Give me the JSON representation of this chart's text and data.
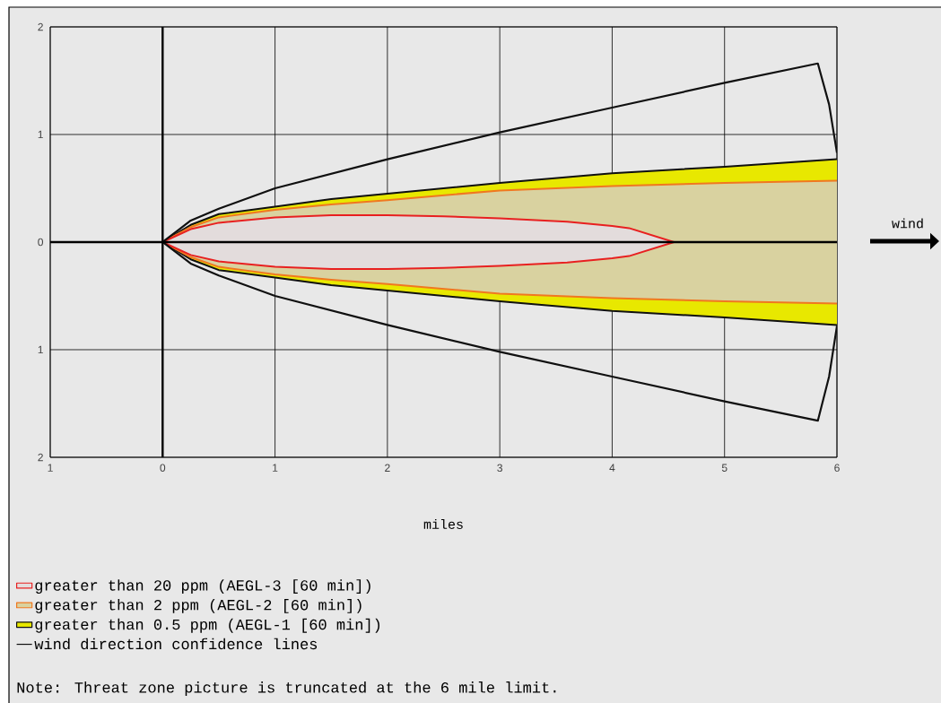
{
  "chart_data": {
    "type": "area",
    "xlabel": "miles",
    "xlim": [
      -1,
      6
    ],
    "ylim": [
      -2,
      2
    ],
    "xticks": [
      {
        "value": -1,
        "label": "1"
      },
      0,
      1,
      2,
      3,
      4,
      5,
      6
    ],
    "yticks": [
      {
        "value": -2,
        "label": "2"
      },
      {
        "value": -1,
        "label": "1"
      },
      0,
      1,
      2
    ],
    "grid": true,
    "legend": "bottom",
    "series": [
      {
        "name": "greater than 20 ppm (AEGL-3 [60 min])",
        "color": "#e3dcdc",
        "x": [
          0,
          0.25,
          0.5,
          1,
          1.5,
          2,
          2.5,
          3,
          3.6,
          4,
          4.15,
          4.55
        ],
        "values": [
          0,
          0.12,
          0.18,
          0.23,
          0.25,
          0.25,
          0.24,
          0.22,
          0.19,
          0.15,
          0.13,
          0
        ]
      },
      {
        "color": "#e3dcdc",
        "x": [
          0,
          0.25,
          0.5,
          1,
          1.5,
          2,
          2.5,
          3,
          3.6,
          4,
          4.15,
          4.55
        ],
        "values": [
          0,
          -0.12,
          -0.18,
          -0.23,
          -0.25,
          -0.25,
          -0.24,
          -0.22,
          -0.19,
          -0.15,
          -0.13,
          0
        ]
      },
      {
        "name": "greater than 2 ppm (AEGL-2 [60 min])",
        "color": "#d9d2a0",
        "x": [
          0,
          0.25,
          0.5,
          1,
          1.5,
          2,
          3,
          4,
          5,
          6
        ],
        "values": [
          0,
          0.14,
          0.23,
          0.3,
          0.35,
          0.39,
          0.48,
          0.52,
          0.55,
          0.57
        ]
      },
      {
        "color": "#d9d2a0",
        "x": [
          0,
          0.25,
          0.5,
          1,
          1.5,
          2,
          3,
          4,
          5,
          6
        ],
        "values": [
          0,
          -0.14,
          -0.23,
          -0.3,
          -0.35,
          -0.39,
          -0.48,
          -0.52,
          -0.55,
          -0.57
        ]
      },
      {
        "name": "greater than 0.5 ppm (AEGL-1 [60 min])",
        "color": "#e8e800",
        "x": [
          0,
          0.25,
          0.5,
          1,
          1.5,
          2,
          3,
          4,
          5,
          6
        ],
        "values": [
          0,
          0.16,
          0.26,
          0.33,
          0.4,
          0.45,
          0.55,
          0.64,
          0.7,
          0.77
        ]
      },
      {
        "color": "#e8e800",
        "x": [
          0,
          0.25,
          0.5,
          1,
          1.5,
          2,
          3,
          4,
          5,
          6
        ],
        "values": [
          0,
          -0.16,
          -0.26,
          -0.33,
          -0.4,
          -0.45,
          -0.55,
          -0.64,
          -0.7,
          -0.77
        ]
      },
      {
        "name": "wind direction confidence lines",
        "type": "line",
        "color": "#101010",
        "x": [
          0,
          0.25,
          0.5,
          1,
          2,
          3,
          4,
          5,
          5.83,
          5.93,
          6
        ],
        "values": [
          0,
          0.2,
          0.31,
          0.5,
          0.77,
          1.02,
          1.25,
          1.48,
          1.66,
          1.28,
          0.83
        ]
      },
      {
        "type": "line",
        "color": "#101010",
        "x": [
          0,
          0.25,
          0.5,
          1,
          2,
          3,
          4,
          5,
          5.83,
          5.93,
          6
        ],
        "values": [
          0,
          -0.2,
          -0.31,
          -0.5,
          -0.77,
          -1.02,
          -1.25,
          -1.48,
          -1.66,
          -1.25,
          -0.78
        ]
      }
    ],
    "annotations": [
      "wind",
      "Note: Threat zone picture is truncated at the 6 mile limit."
    ]
  }
}
